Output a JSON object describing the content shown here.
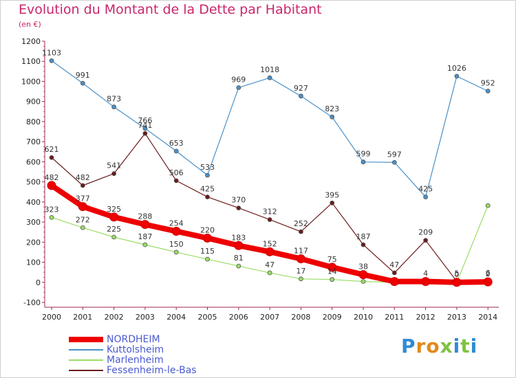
{
  "title": "Evolution du Montant de la Dette par Habitant",
  "subtitle": "(en €)",
  "logo": "Proxiti",
  "chart_data": {
    "type": "line",
    "title": "Evolution du Montant de la Dette par Habitant",
    "subtitle": "(en €)",
    "xlabel": "",
    "ylabel": "",
    "x": [
      "2000",
      "2001",
      "2002",
      "2003",
      "2004",
      "2005",
      "2006",
      "2007",
      "2008",
      "2009",
      "2010",
      "2011",
      "2012",
      "2013",
      "2014"
    ],
    "ylim": [
      -100,
      1200
    ],
    "yticks": [
      -100,
      0,
      100,
      200,
      300,
      400,
      500,
      600,
      700,
      800,
      900,
      1000,
      1100,
      1200
    ],
    "grid": false,
    "legend_position": "bottom-left",
    "series": [
      {
        "name": "Kuttolsheim",
        "color": "#4a90c8",
        "width": 1.2,
        "marker": 3,
        "values": [
          1103,
          991,
          873,
          766,
          653,
          533,
          969,
          1018,
          927,
          823,
          599,
          597,
          425,
          1026,
          952
        ]
      },
      {
        "name": "Marlenheim",
        "color": "#99dd66",
        "width": 1.2,
        "marker": 3,
        "values": [
          323,
          272,
          225,
          187,
          150,
          115,
          81,
          47,
          17,
          14,
          4,
          0,
          0,
          0,
          382
        ]
      },
      {
        "name": "Fessenheim-le-Bas",
        "color": "#6b1a1a",
        "width": 1.2,
        "marker": 3,
        "values": [
          621,
          482,
          541,
          741,
          506,
          425,
          370,
          312,
          252,
          395,
          187,
          47,
          209,
          5,
          6
        ]
      },
      {
        "name": "NORDHEIM",
        "color": "#ee0000",
        "width": 8,
        "marker": 6,
        "values": [
          482,
          377,
          325,
          288,
          254,
          220,
          183,
          152,
          117,
          75,
          38,
          4,
          4,
          0,
          2
        ]
      }
    ],
    "value_labels": [
      {
        "series": "Kuttolsheim",
        "labels": [
          "1103",
          "991",
          "873",
          "766",
          "653",
          "533",
          "969",
          "1018",
          "927",
          "823",
          "599",
          "597",
          "425",
          "1026",
          "952"
        ]
      },
      {
        "series": "Marlenheim",
        "labels": [
          "323",
          "272",
          "225",
          "187",
          "150",
          "115",
          "81",
          "47",
          "17",
          "14",
          "",
          "",
          "",
          "",
          ""
        ]
      },
      {
        "series": "Fessenheim-le-Bas",
        "labels": [
          "621",
          "482",
          "541",
          "741",
          "506",
          "425",
          "370",
          "312",
          "252",
          "395",
          "187",
          "47",
          "209",
          "5",
          "6"
        ]
      },
      {
        "series": "NORDHEIM",
        "labels": [
          "482",
          "377",
          "325",
          "288",
          "254",
          "220",
          "183",
          "152",
          "117",
          "75",
          "38",
          "",
          "4",
          "0",
          "2"
        ]
      }
    ]
  },
  "legend": [
    {
      "name": "NORDHEIM",
      "color": "#ee0000",
      "thickness": 8
    },
    {
      "name": "Kuttolsheim",
      "color": "#4a90c8",
      "thickness": 2
    },
    {
      "name": "Marlenheim",
      "color": "#99dd66",
      "thickness": 2
    },
    {
      "name": "Fessenheim-le-Bas",
      "color": "#6b1a1a",
      "thickness": 2
    }
  ]
}
